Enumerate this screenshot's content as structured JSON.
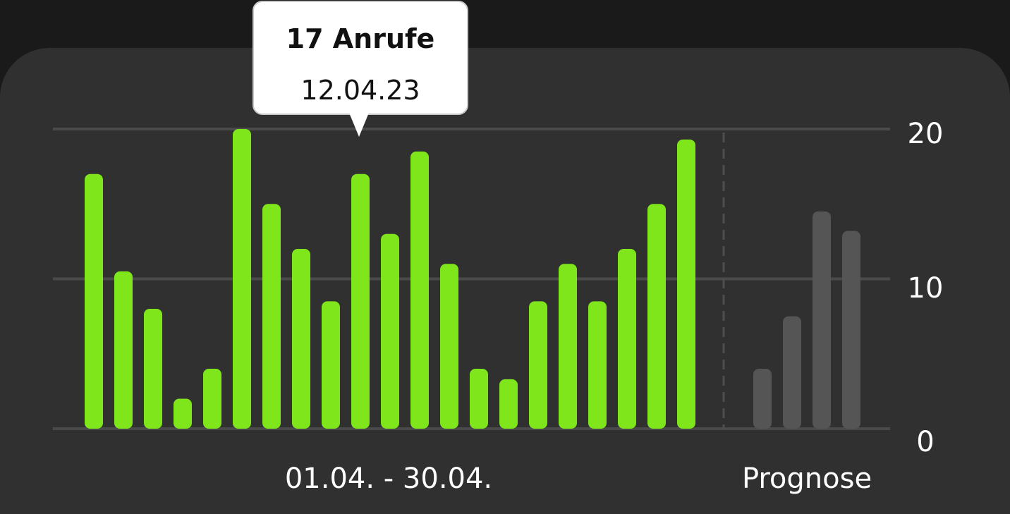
{
  "colors": {
    "background": "#1a1a1a",
    "card": "#303030",
    "actual_bar": "#7fe61b",
    "forecast_bar": "#555555",
    "gridline": "#4a4a4a",
    "text": "#ffffff"
  },
  "tooltip": {
    "value_label": "17 Anrufe",
    "date_label": "12.04.23"
  },
  "chart_data": {
    "type": "bar",
    "ylim": [
      0,
      20
    ],
    "yticks": [
      "20",
      "10",
      "0"
    ],
    "grid": true,
    "xlabel": "01.04. - 30.04.",
    "forecast_label": "Prognose",
    "series": [
      {
        "values": [
          17,
          10.5,
          8,
          2,
          4,
          20,
          15,
          12,
          8.5,
          17,
          13,
          18.5,
          11,
          4,
          3.3,
          8.5,
          11,
          8.5,
          12,
          15,
          19.3
        ]
      },
      {
        "values": [
          4,
          7.5,
          14.5,
          13.2
        ]
      }
    ]
  }
}
